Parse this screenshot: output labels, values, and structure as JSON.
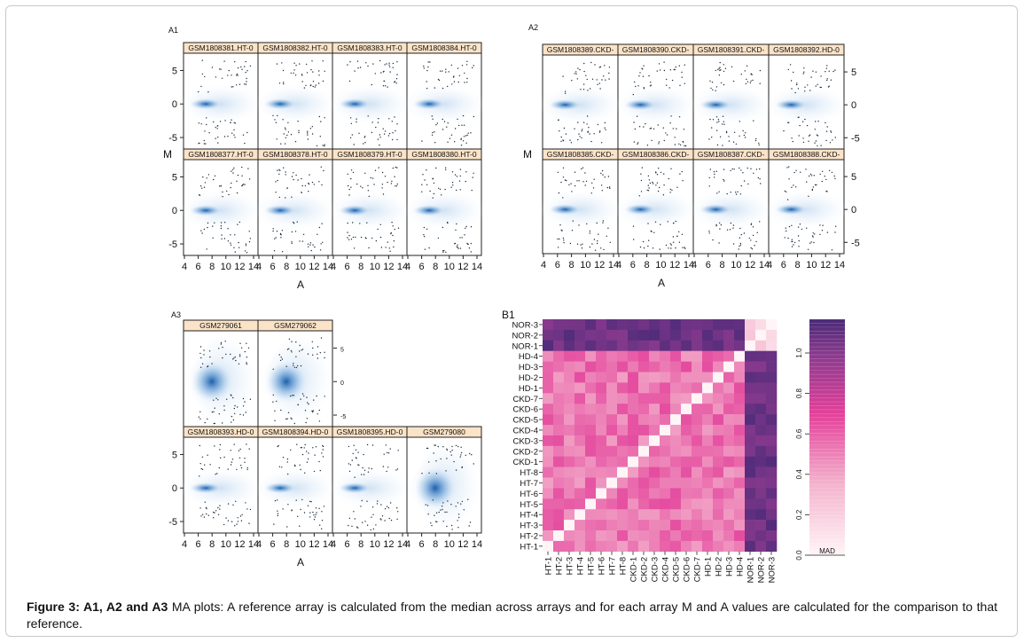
{
  "panels": {
    "A1": {
      "label": "A1",
      "strips": [
        "GSM1808381.HT-0",
        "GSM1808382.HT-0",
        "GSM1808383.HT-0",
        "GSM1808384.HT-0",
        "GSM1808377.HT-0",
        "GSM1808378.HT-0",
        "GSM1808379.HT-0",
        "GSM1808380.HT-0"
      ],
      "x_ticks": [
        "4",
        "6",
        "8",
        "10",
        "12",
        "14"
      ],
      "y_ticks": [
        "5",
        "0",
        "-5"
      ],
      "xlabel": "A",
      "ylabel": "M"
    },
    "A2": {
      "label": "A2",
      "strips": [
        "GSM1808389.CKD-",
        "GSM1808390.CKD-",
        "GSM1808391.CKD-",
        "GSM1808392.HD-0",
        "GSM1808385.CKD-",
        "GSM1808386.CKD-",
        "GSM1808387.CKD-",
        "GSM1808388.CKD-"
      ],
      "x_ticks": [
        "4",
        "6",
        "8",
        "10",
        "12",
        "14"
      ],
      "y_ticks": [
        "5",
        "0",
        "-5"
      ],
      "xlabel": "A",
      "ylabel": "M"
    },
    "A3": {
      "label": "A3",
      "strips": [
        "GSM279061",
        "GSM279062",
        "GSM1808393.HD-0",
        "GSM1808394.HD-0",
        "GSM1808395.HD-0",
        "GSM279080"
      ],
      "x_ticks": [
        "4",
        "6",
        "8",
        "10",
        "12",
        "14"
      ],
      "y_ticks": [
        "5",
        "0",
        "-5"
      ],
      "xlabel": "A"
    }
  },
  "chart_data": {
    "type": "heatmap",
    "label": "B1",
    "legend_label": "MAD",
    "legend_ticks": [
      "0.0",
      "0.2",
      "0.4",
      "0.6",
      "0.8",
      "1.0"
    ],
    "row_labels": [
      "NOR-3",
      "NOR-2",
      "NOR-1",
      "HD-4",
      "HD-3",
      "HD-2",
      "HD-1",
      "CKD-7",
      "CKD-6",
      "CKD-5",
      "CKD-4",
      "CKD-3",
      "CKD-2",
      "CKD-1",
      "HT-8",
      "HT-7",
      "HT-6",
      "HT-5",
      "HT-4",
      "HT-3",
      "HT-2",
      "HT-1"
    ],
    "col_labels": [
      "HT-1",
      "HT-2",
      "HT-3",
      "HT-4",
      "HT-5",
      "HT-6",
      "HT-7",
      "HT-8",
      "CKD-1",
      "CKD-2",
      "CKD-3",
      "CKD-4",
      "CKD-5",
      "CKD-6",
      "CKD-7",
      "HD-1",
      "HD-2",
      "HD-3",
      "HD-4",
      "NOR-1",
      "NOR-2",
      "NOR-3"
    ],
    "colors": {
      "low": "#fff5f7",
      "mid": "#e3409a",
      "high": "#4a2a78"
    }
  },
  "caption": {
    "bold": "Figure 3: A1, A2 and A3",
    "text": " MA plots: A reference array is calculated from the median across arrays and for each array M and A values are calculated for the comparison to that reference."
  }
}
